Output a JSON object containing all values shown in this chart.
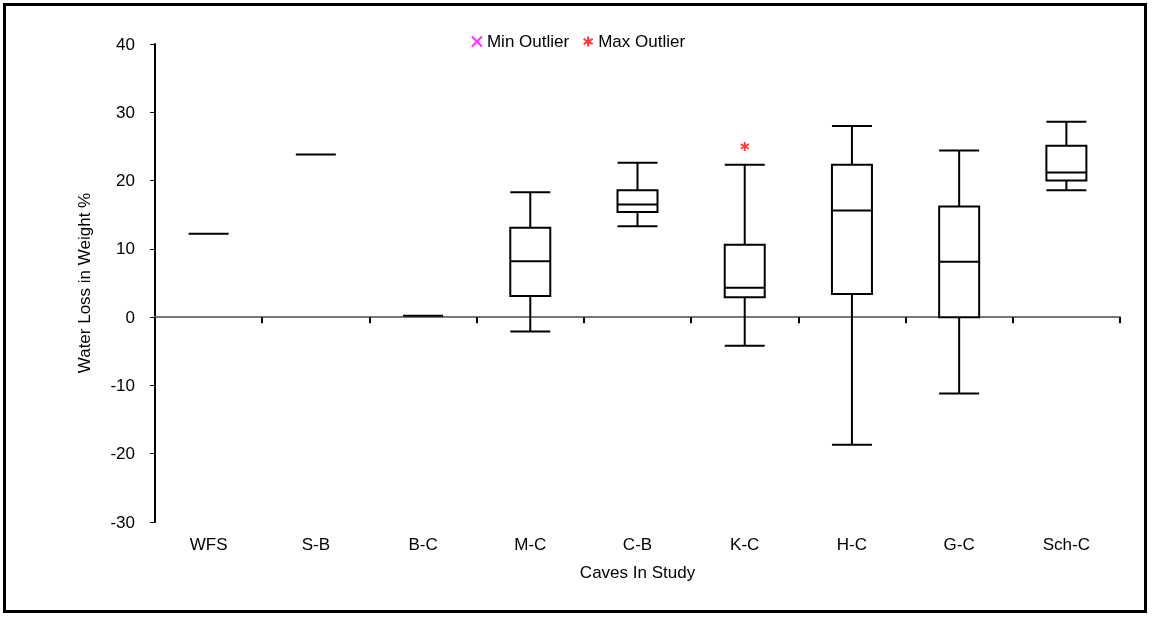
{
  "chart_data": {
    "type": "box",
    "xlabel": "Caves In Study",
    "ylabel": "Water Loss in Weight %",
    "categories": [
      "WFS",
      "S-B",
      "B-C",
      "M-C",
      "C-B",
      "K-C",
      "H-C",
      "G-C",
      "Sch-C"
    ],
    "boxes": [
      {
        "low": 12.2,
        "q1": 12.2,
        "median": 12.2,
        "q3": 12.2,
        "high": 12.2
      },
      {
        "low": 23.8,
        "q1": 23.8,
        "median": 23.8,
        "q3": 23.8,
        "high": 23.8
      },
      {
        "low": 0.2,
        "q1": 0.2,
        "median": 0.2,
        "q3": 0.2,
        "high": 0.2
      },
      {
        "low": -2.1,
        "q1": 3.1,
        "median": 8.2,
        "q3": 13.1,
        "high": 18.3
      },
      {
        "low": 13.3,
        "q1": 15.4,
        "median": 16.5,
        "q3": 18.6,
        "high": 22.6
      },
      {
        "low": -4.2,
        "q1": 2.9,
        "median": 4.3,
        "q3": 10.6,
        "high": 22.3
      },
      {
        "low": -18.7,
        "q1": 3.4,
        "median": 15.6,
        "q3": 22.3,
        "high": 28.0
      },
      {
        "low": -11.2,
        "q1": 0.0,
        "median": 8.1,
        "q3": 16.2,
        "high": 24.4
      },
      {
        "low": 18.6,
        "q1": 20.0,
        "median": 21.2,
        "q3": 25.1,
        "high": 28.6
      }
    ],
    "series": [
      {
        "name": "Min Outlier",
        "type": "scatter",
        "color": "#ff00ff",
        "marker": "cross",
        "values": [
          null,
          null,
          null,
          null,
          null,
          null,
          null,
          null,
          null
        ]
      },
      {
        "name": "Max Outlier",
        "type": "scatter",
        "color": "#ff0000",
        "marker": "star",
        "values": [
          null,
          null,
          null,
          null,
          null,
          25.0,
          null,
          null,
          null
        ]
      }
    ],
    "ylim": [
      -30,
      40
    ],
    "yticks": [
      -30,
      -20,
      -10,
      0,
      10,
      20,
      30,
      40
    ],
    "color": "#000000",
    "legend": "top"
  }
}
